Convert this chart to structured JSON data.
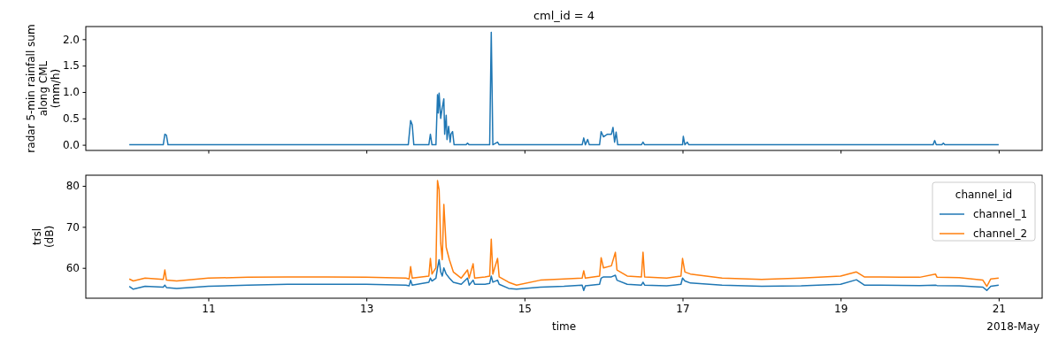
{
  "chart_data": [
    {
      "type": "line",
      "title": "cml_id = 4",
      "ylabel": "radar 5-min rainfall sum\nalong CML\n(mm/h)",
      "tick_labels": "y",
      "xlim": [
        "2018-05-09T10:48",
        "2018-05-21T13:12"
      ],
      "xticks": [
        {
          "value": "2018-05-11",
          "label": null
        },
        {
          "value": "2018-05-13",
          "label": null
        },
        {
          "value": "2018-05-15",
          "label": null
        },
        {
          "value": "2018-05-17",
          "label": null
        },
        {
          "value": "2018-05-19",
          "label": null
        },
        {
          "value": "2018-05-21",
          "label": null
        }
      ],
      "ylim": [
        -0.107,
        2.24
      ],
      "yticks": [
        {
          "value": 0,
          "label": "0.0"
        },
        {
          "value": 0.5,
          "label": "0.5"
        },
        {
          "value": 1,
          "label": "1.0"
        },
        {
          "value": 1.5,
          "label": "1.5"
        },
        {
          "value": 2,
          "label": "2.0"
        }
      ],
      "series": [
        {
          "color": "#1f77b4",
          "x": [
            "2018-05-10T00:00",
            "2018-05-10T10:19",
            "2018-05-10T10:48",
            "2018-05-10T11:17",
            "2018-05-10T11:46",
            "2018-05-13T12:43",
            "2018-05-13T13:26",
            "2018-05-13T13:55",
            "2018-05-13T14:24",
            "2018-05-13T18:58",
            "2018-05-13T19:26",
            "2018-05-13T19:55",
            "2018-05-13T21:07",
            "2018-05-13T21:36",
            "2018-05-13T21:50",
            "2018-05-13T22:05",
            "2018-05-13T22:34",
            "2018-05-13T23:02",
            "2018-05-13T23:31",
            "2018-05-13T23:46",
            "2018-05-14T00:14",
            "2018-05-14T00:29",
            "2018-05-14T00:58",
            "2018-05-14T01:26",
            "2018-05-14T01:41",
            "2018-05-14T02:10",
            "2018-05-14T02:38",
            "2018-05-14T06:14",
            "2018-05-14T06:43",
            "2018-05-14T07:12",
            "2018-05-14T13:26",
            "2018-05-14T13:55",
            "2018-05-14T14:24",
            "2018-05-14T15:50",
            "2018-05-14T16:19",
            "2018-05-15T17:31",
            "2018-05-15T18:00",
            "2018-05-15T18:29",
            "2018-05-15T19:12",
            "2018-05-15T19:41",
            "2018-05-15T22:48",
            "2018-05-15T23:17",
            "2018-05-16T00:00",
            "2018-05-16T01:12",
            "2018-05-16T02:24",
            "2018-05-16T02:53",
            "2018-05-16T03:22",
            "2018-05-16T03:50",
            "2018-05-16T04:19",
            "2018-05-16T11:31",
            "2018-05-16T12:00",
            "2018-05-16T12:29",
            "2018-05-17T00:00",
            "2018-05-17T00:14",
            "2018-05-17T00:43",
            "2018-05-17T01:26",
            "2018-05-17T01:55",
            "2018-05-20T04:05",
            "2018-05-20T04:34",
            "2018-05-20T05:02",
            "2018-05-20T06:43",
            "2018-05-20T07:12",
            "2018-05-20T07:41",
            "2018-05-21T00:00"
          ],
          "values": [
            0,
            0,
            0.2,
            0.18,
            0,
            0,
            0.46,
            0.38,
            0,
            0,
            0.2,
            0,
            0,
            0.95,
            0.6,
            0.98,
            0.5,
            0.7,
            0.87,
            0.2,
            0.56,
            0.1,
            0.35,
            0.05,
            0.2,
            0.25,
            0,
            0,
            0.03,
            0,
            0,
            2.13,
            0,
            0.05,
            0,
            0,
            0.13,
            0,
            0.1,
            0,
            0,
            0.25,
            0.15,
            0.2,
            0.2,
            0.33,
            0.05,
            0.24,
            0,
            0,
            0.05,
            0,
            0,
            0.16,
            0,
            0.05,
            0,
            0,
            0.08,
            0,
            0,
            0.03,
            0,
            0
          ]
        }
      ]
    },
    {
      "type": "line",
      "xlabel": "time",
      "annotations": [
        "2018-May"
      ],
      "legend": "top right",
      "legend_title": "channel_id",
      "ylabel": "trsl\n(dB)",
      "xlim": [
        "2018-05-09T10:48",
        "2018-05-21T13:12"
      ],
      "xticks": [
        {
          "value": "2018-05-11",
          "label": "11"
        },
        {
          "value": "2018-05-13",
          "label": "13"
        },
        {
          "value": "2018-05-15",
          "label": "15"
        },
        {
          "value": "2018-05-17",
          "label": "17"
        },
        {
          "value": "2018-05-19",
          "label": "19"
        },
        {
          "value": "2018-05-21",
          "label": "21"
        }
      ],
      "ylim": [
        52.6,
        82.6
      ],
      "yticks": [
        60,
        70,
        80
      ],
      "x": [
        "2018-05-10T00:00",
        "2018-05-10T01:12",
        "2018-05-10T04:48",
        "2018-05-10T10:19",
        "2018-05-10T10:48",
        "2018-05-10T11:17",
        "2018-05-10T14:24",
        "2018-05-11T00:00",
        "2018-05-11T12:00",
        "2018-05-12T00:00",
        "2018-05-12T12:00",
        "2018-05-13T00:00",
        "2018-05-13T12:00",
        "2018-05-13T12:58",
        "2018-05-13T13:26",
        "2018-05-13T13:55",
        "2018-05-13T18:58",
        "2018-05-13T19:26",
        "2018-05-13T19:55",
        "2018-05-13T21:07",
        "2018-05-13T21:36",
        "2018-05-13T22:05",
        "2018-05-13T22:34",
        "2018-05-13T23:02",
        "2018-05-13T23:31",
        "2018-05-14T00:14",
        "2018-05-14T01:12",
        "2018-05-14T02:24",
        "2018-05-14T04:48",
        "2018-05-14T06:43",
        "2018-05-14T07:12",
        "2018-05-14T08:24",
        "2018-05-14T08:53",
        "2018-05-14T12:00",
        "2018-05-14T13:26",
        "2018-05-14T13:55",
        "2018-05-14T14:24",
        "2018-05-14T15:50",
        "2018-05-14T16:19",
        "2018-05-14T19:12",
        "2018-05-14T21:36",
        "2018-05-15T04:48",
        "2018-05-15T12:00",
        "2018-05-15T17:31",
        "2018-05-15T18:00",
        "2018-05-15T18:29",
        "2018-05-15T22:48",
        "2018-05-15T23:17",
        "2018-05-16T00:00",
        "2018-05-16T02:24",
        "2018-05-16T03:36",
        "2018-05-16T04:05",
        "2018-05-16T07:12",
        "2018-05-16T11:31",
        "2018-05-16T12:00",
        "2018-05-16T12:29",
        "2018-05-16T19:12",
        "2018-05-16T23:31",
        "2018-05-17T00:00",
        "2018-05-17T00:43",
        "2018-05-17T02:24",
        "2018-05-17T12:00",
        "2018-05-18T00:00",
        "2018-05-18T12:00",
        "2018-05-19T00:00",
        "2018-05-19T04:48",
        "2018-05-19T07:12",
        "2018-05-19T12:00",
        "2018-05-20T00:00",
        "2018-05-20T04:48",
        "2018-05-20T05:17",
        "2018-05-20T12:00",
        "2018-05-20T19:12",
        "2018-05-20T20:24",
        "2018-05-20T21:36",
        "2018-05-21T00:00"
      ],
      "series": [
        {
          "name": "channel_1",
          "color": "#1f77b4",
          "values": [
            55.5,
            54.8,
            55.5,
            55.3,
            55.8,
            55.2,
            55.0,
            55.5,
            55.8,
            56.0,
            56.0,
            56.0,
            55.8,
            55.6,
            57.0,
            55.8,
            56.5,
            57.5,
            56.8,
            57.5,
            60.0,
            62.0,
            59.0,
            58.0,
            60.0,
            58.5,
            57.5,
            56.5,
            56.0,
            57.5,
            55.8,
            57.0,
            56.0,
            56.0,
            56.2,
            58.0,
            56.5,
            57.0,
            56.0,
            55.0,
            54.8,
            55.3,
            55.5,
            55.8,
            54.5,
            55.6,
            56.0,
            57.5,
            57.8,
            57.8,
            58.2,
            57.0,
            56.0,
            55.8,
            56.5,
            55.8,
            55.6,
            56.0,
            57.5,
            56.8,
            56.3,
            55.8,
            55.5,
            55.6,
            56.0,
            57.1,
            55.8,
            55.8,
            55.7,
            55.8,
            55.7,
            55.6,
            55.3,
            54.5,
            55.5,
            55.8
          ]
        },
        {
          "name": "channel_2",
          "color": "#ff7f0e",
          "values": [
            57.3,
            56.8,
            57.5,
            57.2,
            59.5,
            57.0,
            56.8,
            57.5,
            57.7,
            57.8,
            57.8,
            57.7,
            57.5,
            57.3,
            60.3,
            57.5,
            58.0,
            62.3,
            58.5,
            60.0,
            81.3,
            79.0,
            66.0,
            62.0,
            75.5,
            65.0,
            62.0,
            59.0,
            57.5,
            59.5,
            57.5,
            61.0,
            57.5,
            57.8,
            58.0,
            67.0,
            58.5,
            62.3,
            57.8,
            56.5,
            55.8,
            57.0,
            57.3,
            57.5,
            59.3,
            57.5,
            58.0,
            62.5,
            60.0,
            60.5,
            63.8,
            59.5,
            58.0,
            57.8,
            63.8,
            57.8,
            57.5,
            58.0,
            62.3,
            59.0,
            58.5,
            57.5,
            57.2,
            57.5,
            58.0,
            59.0,
            57.8,
            57.8,
            57.7,
            58.5,
            57.7,
            57.6,
            57.0,
            55.5,
            57.3,
            57.5
          ]
        }
      ]
    }
  ]
}
